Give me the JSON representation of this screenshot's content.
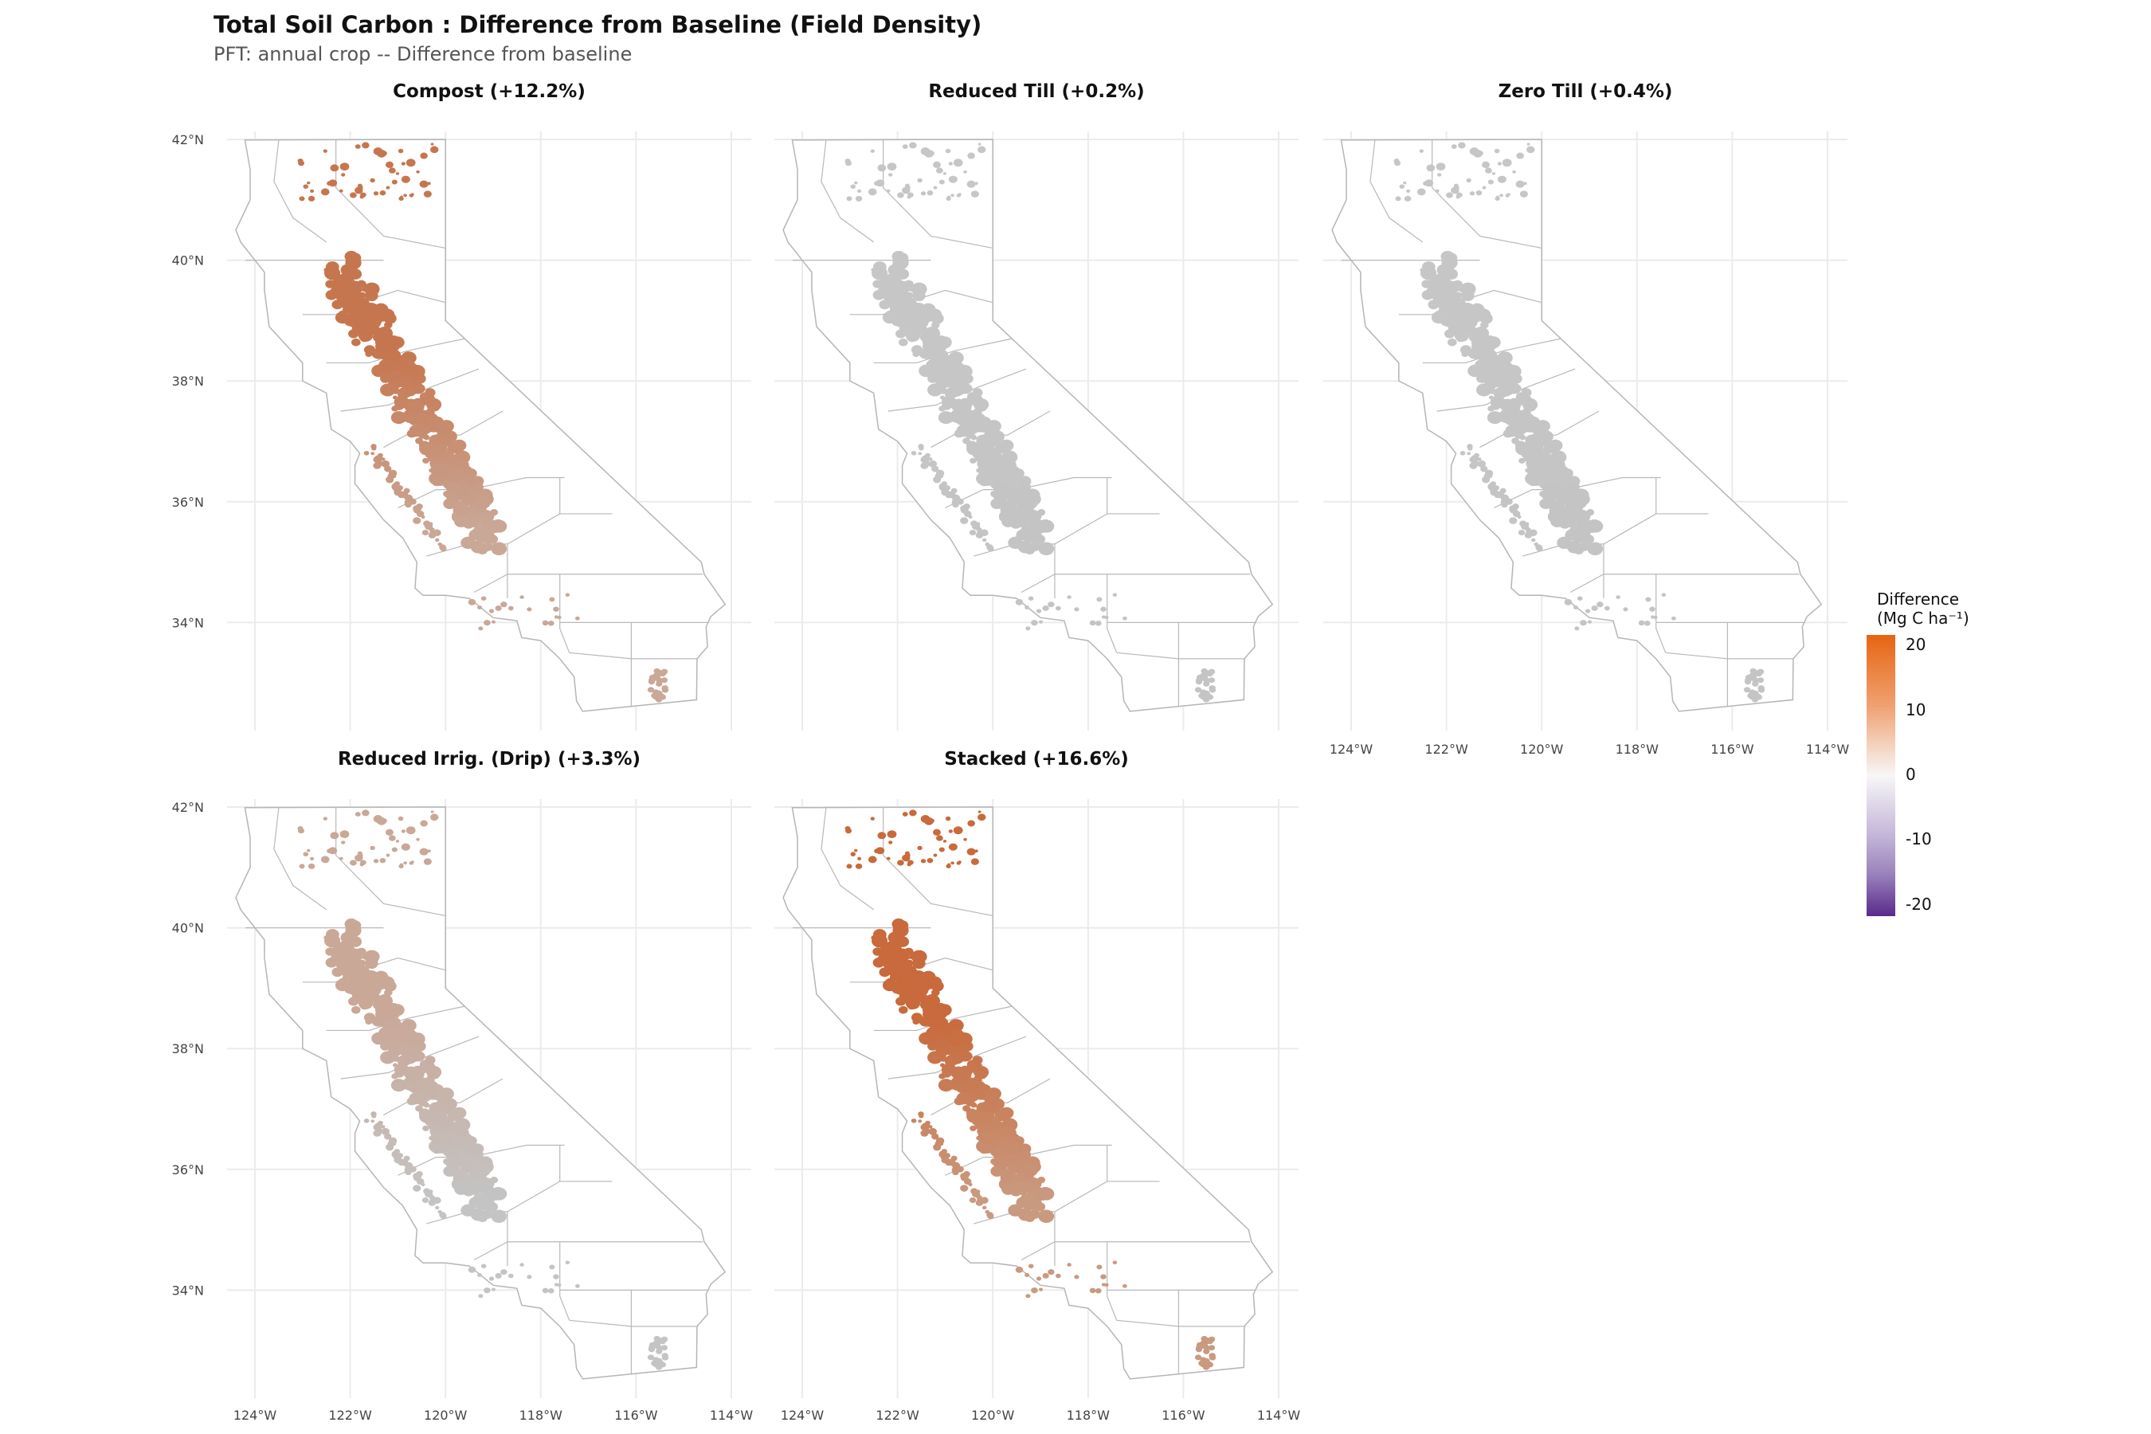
{
  "title": "Total Soil Carbon : Difference from Baseline (Field Density)",
  "subtitle": "PFT: annual crop  -- Difference from baseline",
  "chart_data": {
    "type": "heatmap",
    "title": "Total Soil Carbon : Difference from Baseline (Field Density)",
    "subtitle": "PFT: annual crop  -- Difference from baseline",
    "xlabel": "",
    "ylabel": "",
    "xlim": [
      -124.5,
      -114
    ],
    "ylim": [
      32.3,
      42.2
    ],
    "x_ticks": [
      -124,
      -122,
      -120,
      -118,
      -116,
      -114
    ],
    "x_tick_labels": [
      "124°W",
      "122°W",
      "120°W",
      "118°W",
      "116°W",
      "114°W"
    ],
    "y_ticks": [
      42,
      40,
      38,
      36,
      34
    ],
    "y_tick_labels": [
      "42°N",
      "40°N",
      "38°N",
      "36°N",
      "34°N"
    ],
    "grid": true,
    "panels": [
      {
        "title": "Compost (+12.2%)",
        "scenario": "Compost",
        "pct_change": 12.2,
        "fill_north": "#c6764e",
        "fill_south": "#c9a898"
      },
      {
        "title": "Reduced Till (+0.2%)",
        "scenario": "Reduced Till",
        "pct_change": 0.2,
        "fill_north": "#c6c6c6",
        "fill_south": "#c4c4c4"
      },
      {
        "title": "Zero Till (+0.4%)",
        "scenario": "Zero Till",
        "pct_change": 0.4,
        "fill_north": "#c6c6c6",
        "fill_south": "#c4c4c4"
      },
      {
        "title": "Reduced Irrig. (Drip) (+3.3%)",
        "scenario": "Reduced Irrig. (Drip)",
        "pct_change": 3.3,
        "fill_north": "#c9a898",
        "fill_south": "#c4c4c4"
      },
      {
        "title": "Stacked (+16.6%)",
        "scenario": "Stacked",
        "pct_change": 16.6,
        "fill_north": "#c86a3c",
        "fill_south": "#c99a80"
      }
    ],
    "legend": {
      "title_line1": "Difference",
      "title_line2": "(Mg C ha⁻¹)",
      "ticks": [
        "20",
        "10",
        "0",
        "-10",
        "-20"
      ],
      "range": [
        -22,
        22
      ],
      "colors": [
        "#5a2a8c",
        "#f7f7f7",
        "#e66512"
      ],
      "placement": "right"
    }
  }
}
